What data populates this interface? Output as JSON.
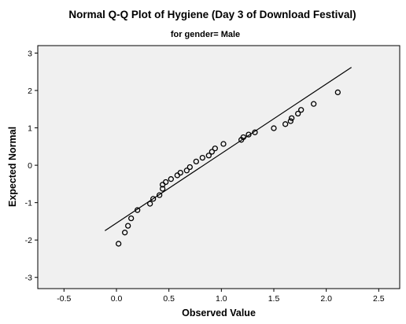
{
  "chart_data": {
    "type": "scatter",
    "title": "Normal Q-Q Plot of Hygiene (Day 3 of Download Festival)",
    "subtitle": "for gender= Male",
    "xlabel": "Observed Value",
    "ylabel": "Expected Normal",
    "xlim": [
      -0.75,
      2.7
    ],
    "ylim": [
      -3.3,
      3.2
    ],
    "xticks": [
      -0.5,
      0.0,
      0.5,
      1.0,
      1.5,
      2.0,
      2.5
    ],
    "yticks": [
      -3,
      -2,
      -1,
      0,
      1,
      2,
      3
    ],
    "xtick_labels": [
      "-0.5",
      "0.0",
      "0.5",
      "1.0",
      "1.5",
      "2.0",
      "2.5"
    ],
    "ytick_labels": [
      "-3",
      "-2",
      "-1",
      "0",
      "1",
      "2",
      "3"
    ],
    "grid": false,
    "reference_line": {
      "x": [
        -0.11,
        2.24
      ],
      "y": [
        -1.75,
        2.62
      ]
    },
    "points": [
      {
        "x": 0.02,
        "y": -2.1
      },
      {
        "x": 0.08,
        "y": -1.8
      },
      {
        "x": 0.11,
        "y": -1.62
      },
      {
        "x": 0.14,
        "y": -1.42
      },
      {
        "x": 0.2,
        "y": -1.2
      },
      {
        "x": 0.32,
        "y": -1.03
      },
      {
        "x": 0.35,
        "y": -0.9
      },
      {
        "x": 0.41,
        "y": -0.8
      },
      {
        "x": 0.44,
        "y": -0.63
      },
      {
        "x": 0.44,
        "y": -0.52
      },
      {
        "x": 0.47,
        "y": -0.45
      },
      {
        "x": 0.52,
        "y": -0.37
      },
      {
        "x": 0.58,
        "y": -0.27
      },
      {
        "x": 0.61,
        "y": -0.2
      },
      {
        "x": 0.67,
        "y": -0.14
      },
      {
        "x": 0.7,
        "y": -0.05
      },
      {
        "x": 0.76,
        "y": 0.1
      },
      {
        "x": 0.82,
        "y": 0.2
      },
      {
        "x": 0.88,
        "y": 0.26
      },
      {
        "x": 0.91,
        "y": 0.36
      },
      {
        "x": 0.94,
        "y": 0.45
      },
      {
        "x": 1.02,
        "y": 0.57
      },
      {
        "x": 1.19,
        "y": 0.68
      },
      {
        "x": 1.21,
        "y": 0.75
      },
      {
        "x": 1.26,
        "y": 0.82
      },
      {
        "x": 1.32,
        "y": 0.88
      },
      {
        "x": 1.5,
        "y": 0.99
      },
      {
        "x": 1.61,
        "y": 1.1
      },
      {
        "x": 1.66,
        "y": 1.18
      },
      {
        "x": 1.67,
        "y": 1.26
      },
      {
        "x": 1.73,
        "y": 1.38
      },
      {
        "x": 1.76,
        "y": 1.48
      },
      {
        "x": 1.88,
        "y": 1.64
      },
      {
        "x": 2.11,
        "y": 1.95
      }
    ]
  }
}
